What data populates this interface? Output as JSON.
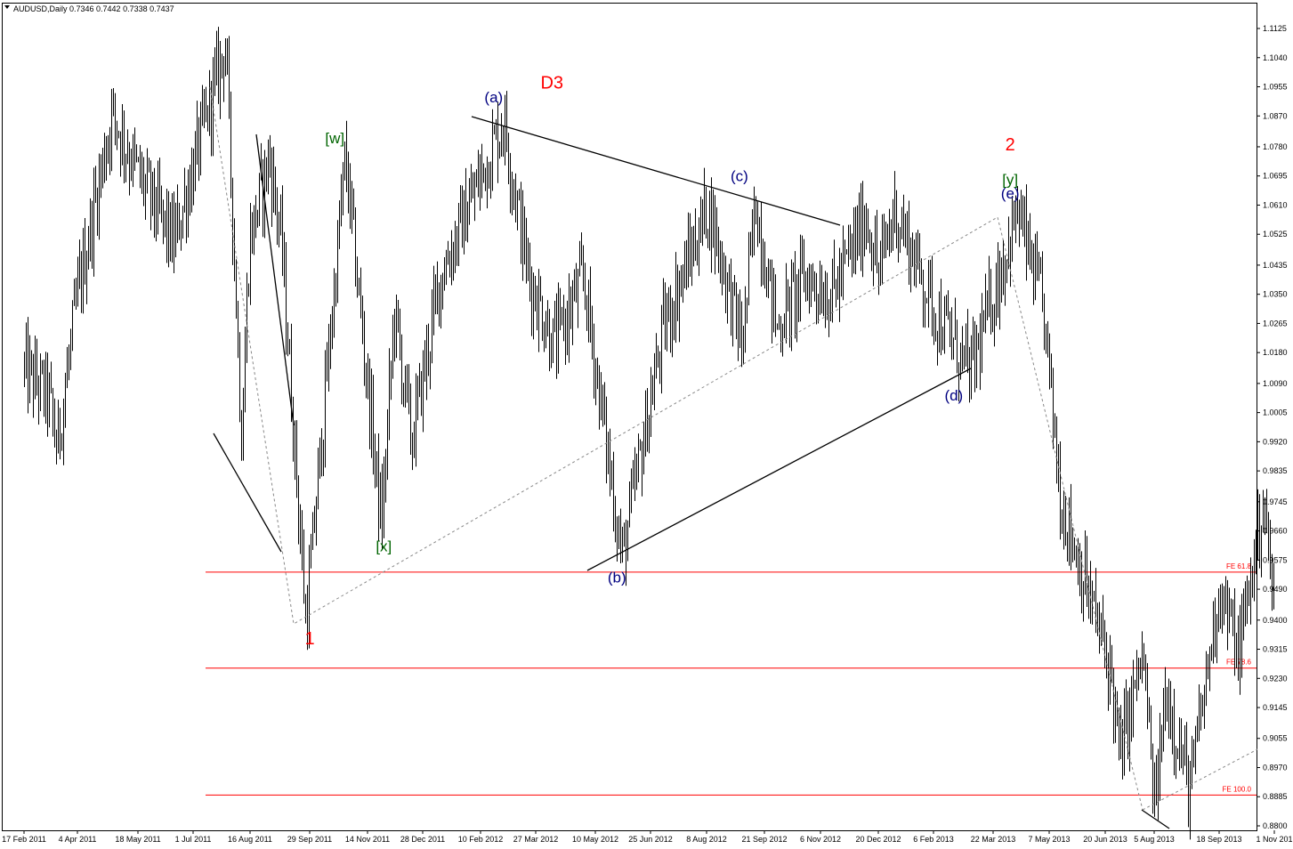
{
  "chart_data": {
    "type": "ohlc",
    "symbol": "AUDUSD",
    "timeframe": "Daily",
    "header_text": "AUDUSD,Daily  0.7346 0.7442 0.7338 0.7437",
    "ohlc_values": [
      0.7346,
      0.7442,
      0.7338,
      0.7437
    ],
    "ylim": [
      0.88,
      1.1125
    ],
    "y_ticks": [
      "1.1125",
      "1.1040",
      "1.0955",
      "1.0870",
      "1.0780",
      "1.0695",
      "1.0610",
      "1.0525",
      "1.0435",
      "1.0350",
      "1.0265",
      "1.0180",
      "1.0090",
      "1.0005",
      "0.9920",
      "0.9835",
      "0.9745",
      "0.9660",
      "0.9575",
      "0.9490",
      "0.9400",
      "0.9315",
      "0.9230",
      "0.9145",
      "0.9055",
      "0.8970",
      "0.8885",
      "0.8800"
    ],
    "x_ticks": [
      "17 Feb 2011",
      "4 Apr 2011",
      "18 May 2011",
      "1 Jul 2011",
      "16 Aug 2011",
      "29 Sep 2011",
      "14 Nov 2011",
      "28 Dec 2011",
      "10 Feb 2012",
      "27 Mar 2012",
      "10 May 2012",
      "25 Jun 2012",
      "8 Aug 2012",
      "21 Sep 2012",
      "6 Nov 2012",
      "20 Dec 2012",
      "6 Feb 2013",
      "22 Mar 2013",
      "7 May 2013",
      "20 Jun 2013",
      "5 Aug 2013",
      "18 Sep 2013",
      "1 Nov 2013"
    ],
    "x_ticks_shown": [
      "17 Feb 2011",
      "4 Apr 2011",
      "18 May 2011",
      "1 Jul 2011",
      "16 Aug 2011",
      "29 Sep 2011",
      "14 Nov 2011",
      "28 Dec 2011",
      "10 Feb 2012",
      "27 Mar 2012",
      "10 May 2012",
      "25 Jun 2012",
      "8 Aug 2012",
      "21 Sep 2012",
      "6 Nov 2012",
      "20 Dec 2012",
      "6 Feb 2013",
      "22 Mar 2013",
      "7 May 2013",
      "20 Jun 2013",
      "5 Aug 2013",
      "18 Sep 2013",
      "1 Nov 201"
    ],
    "price_path": [
      {
        "date": "2011-02-17",
        "price": 1.013
      },
      {
        "date": "2011-03-10",
        "price": 1.005
      },
      {
        "date": "2011-03-17",
        "price": 0.99
      },
      {
        "date": "2011-04-04",
        "price": 1.035
      },
      {
        "date": "2011-04-29",
        "price": 1.088
      },
      {
        "date": "2011-05-18",
        "price": 1.07
      },
      {
        "date": "2011-06-15",
        "price": 1.05
      },
      {
        "date": "2011-07-27",
        "price": 1.108
      },
      {
        "date": "2011-08-09",
        "price": 0.993
      },
      {
        "date": "2011-08-15",
        "price": 1.05
      },
      {
        "date": "2011-08-30",
        "price": 1.075
      },
      {
        "date": "2011-09-08",
        "price": 1.05
      },
      {
        "date": "2011-09-26",
        "price": 0.939
      },
      {
        "date": "2011-10-27",
        "price": 1.075
      },
      {
        "date": "2011-11-25",
        "price": 0.967
      },
      {
        "date": "2011-12-05",
        "price": 1.03
      },
      {
        "date": "2011-12-19",
        "price": 0.992
      },
      {
        "date": "2012-01-10",
        "price": 1.04
      },
      {
        "date": "2012-02-29",
        "price": 1.086
      },
      {
        "date": "2012-03-21",
        "price": 1.04
      },
      {
        "date": "2012-04-10",
        "price": 1.02
      },
      {
        "date": "2012-05-01",
        "price": 1.04
      },
      {
        "date": "2012-06-01",
        "price": 0.958
      },
      {
        "date": "2012-07-05",
        "price": 1.025
      },
      {
        "date": "2012-08-09",
        "price": 1.061
      },
      {
        "date": "2012-09-04",
        "price": 1.02
      },
      {
        "date": "2012-09-14",
        "price": 1.062
      },
      {
        "date": "2012-10-01",
        "price": 1.025
      },
      {
        "date": "2012-10-23",
        "price": 1.04
      },
      {
        "date": "2012-11-15",
        "price": 1.035
      },
      {
        "date": "2012-12-11",
        "price": 1.058
      },
      {
        "date": "2012-12-20",
        "price": 1.041
      },
      {
        "date": "2013-01-03",
        "price": 1.06
      },
      {
        "date": "2013-02-07",
        "price": 1.03
      },
      {
        "date": "2013-03-05",
        "price": 1.012
      },
      {
        "date": "2013-04-11",
        "price": 1.059
      },
      {
        "date": "2013-05-02",
        "price": 1.03
      },
      {
        "date": "2013-05-16",
        "price": 0.975
      },
      {
        "date": "2013-06-25",
        "price": 0.925
      },
      {
        "date": "2013-07-03",
        "price": 0.9
      },
      {
        "date": "2013-07-25",
        "price": 0.93
      },
      {
        "date": "2013-08-05",
        "price": 0.885
      },
      {
        "date": "2013-08-13",
        "price": 0.92
      },
      {
        "date": "2013-08-29",
        "price": 0.89
      },
      {
        "date": "2013-09-18",
        "price": 0.95
      },
      {
        "date": "2013-10-03",
        "price": 0.93
      },
      {
        "date": "2013-10-23",
        "price": 0.975
      },
      {
        "date": "2013-11-01",
        "price": 0.942
      }
    ],
    "wave_labels": [
      {
        "text": "D3",
        "date": "2012-04-08",
        "price": 1.095,
        "color": "#ff0000",
        "size": 20
      },
      {
        "text": "[w]",
        "date": "2011-10-19",
        "price": 1.079,
        "color": "#006400",
        "size": 17
      },
      {
        "text": "[x]",
        "date": "2011-11-27",
        "price": 0.96,
        "color": "#006400",
        "size": 17
      },
      {
        "text": "1",
        "date": "2011-09-29",
        "price": 0.933,
        "color": "#ff0000",
        "size": 20
      },
      {
        "text": "(a)",
        "date": "2012-02-21",
        "price": 1.091,
        "color": "#000080",
        "size": 17
      },
      {
        "text": "(b)",
        "date": "2012-05-28",
        "price": 0.951,
        "color": "#000080",
        "size": 17
      },
      {
        "text": "(c)",
        "date": "2012-09-02",
        "price": 1.068,
        "color": "#000080",
        "size": 17
      },
      {
        "text": "(d)",
        "date": "2013-02-21",
        "price": 1.004,
        "color": "#000080",
        "size": 17
      },
      {
        "text": "2",
        "date": "2013-04-05",
        "price": 1.077,
        "color": "#ff0000",
        "size": 20
      },
      {
        "text": "[y]",
        "date": "2013-04-05",
        "price": 1.067,
        "color": "#006400",
        "size": 17
      },
      {
        "text": "(e)",
        "date": "2013-04-05",
        "price": 1.063,
        "color": "#000080",
        "size": 17
      }
    ],
    "fib_levels": [
      {
        "label": "FE 61.8",
        "price": 0.954
      },
      {
        "label": "FE 78.6",
        "price": 0.926
      },
      {
        "label": "FE 100.0",
        "price": 0.889
      }
    ],
    "fib_color": "#ff0000"
  }
}
